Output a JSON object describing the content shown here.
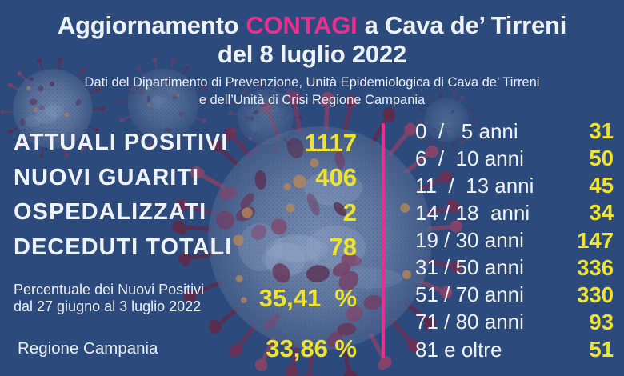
{
  "colors": {
    "background": "#2d4a7c",
    "accent_pink": "#e7308f",
    "accent_yellow": "#efe32e",
    "text_white": "#eef3fb"
  },
  "header": {
    "title_line1_part1": "Aggiornamento",
    "title_line1_highlight": "CONTAGI",
    "title_line1_part2": "a Cava de’ Tirreni",
    "title_line2": "del 8 luglio 2022",
    "subtitle_line1": "Dati del Dipartimento di Prevenzione, Unità Epidemiologica di Cava de’ Tirreni",
    "subtitle_line2": "e dell’Unità di Crisi Regione Campania"
  },
  "summary_stats": {
    "items": [
      {
        "label": "ATTUALI POSITIVI",
        "value": "1117"
      },
      {
        "label": "NUOVI GUARITI",
        "value": "406"
      },
      {
        "label": "OSPEDALIZZATI",
        "value": "2"
      },
      {
        "label": "DECEDUTI TOTALI",
        "value": "78"
      }
    ],
    "new_positives_rate": {
      "label_line1": "Percentuale dei Nuovi Positivi",
      "label_line2": "dal 27 giugno al 3 luglio 2022",
      "value": "35,41  %"
    },
    "region_rate": {
      "label": "Regione Campania",
      "value": "33,86 %"
    }
  },
  "age_breakdown": {
    "rows": [
      {
        "label": "0  /   5 anni",
        "value": "31"
      },
      {
        "label": "6  /  10 anni",
        "value": "50"
      },
      {
        "label": "11  /  13 anni",
        "value": "45"
      },
      {
        "label": "14 / 18  anni",
        "value": "34"
      },
      {
        "label": "19 / 30 anni",
        "value": "147"
      },
      {
        "label": "31 / 50 anni",
        "value": "336"
      },
      {
        "label": "51 / 70 anni",
        "value": "330"
      },
      {
        "label": "71 / 80 anni",
        "value": "93"
      },
      {
        "label": "81 e oltre",
        "value": "51"
      }
    ]
  }
}
